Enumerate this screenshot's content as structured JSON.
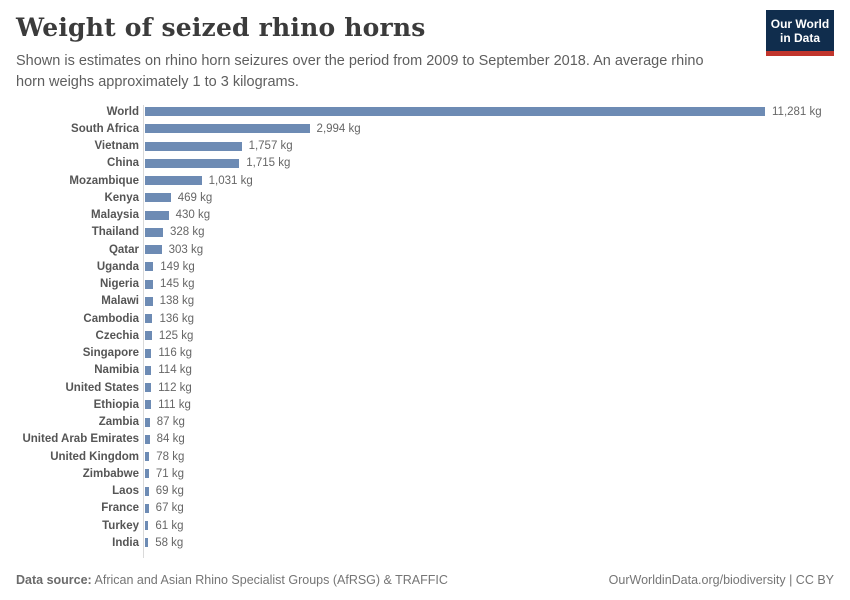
{
  "header": {
    "title": "Weight of seized rhino horns",
    "subtitle": "Shown is estimates on rhino horn seizures over the period from 2009 to September 2018. An average rhino horn weighs approximately 1 to 3 kilograms.",
    "logo": {
      "line1": "Our World",
      "line2": "in Data",
      "bg_color": "#102d4d",
      "accent_color": "#c1352c"
    }
  },
  "chart_data": {
    "type": "bar",
    "orientation": "horizontal",
    "title": "Weight of seized rhino horns",
    "unit": "kg",
    "xlim": [
      0,
      11281
    ],
    "bar_color": "#6d8bb4",
    "grid": false,
    "legend": "none",
    "categories": [
      "World",
      "South Africa",
      "Vietnam",
      "China",
      "Mozambique",
      "Kenya",
      "Malaysia",
      "Thailand",
      "Qatar",
      "Uganda",
      "Nigeria",
      "Malawi",
      "Cambodia",
      "Czechia",
      "Singapore",
      "Namibia",
      "United States",
      "Ethiopia",
      "Zambia",
      "United Arab Emirates",
      "United Kingdom",
      "Zimbabwe",
      "Laos",
      "France",
      "Turkey",
      "India"
    ],
    "values": [
      11281,
      2994,
      1757,
      1715,
      1031,
      469,
      430,
      328,
      303,
      149,
      145,
      138,
      136,
      125,
      116,
      114,
      112,
      111,
      87,
      84,
      78,
      71,
      69,
      67,
      61,
      58
    ]
  },
  "footer": {
    "source_label": "Data source:",
    "source_text": " African and Asian Rhino Specialist Groups (AfRSG) & TRAFFIC",
    "link_text": "OurWorldinData.org/biodiversity | CC BY"
  }
}
